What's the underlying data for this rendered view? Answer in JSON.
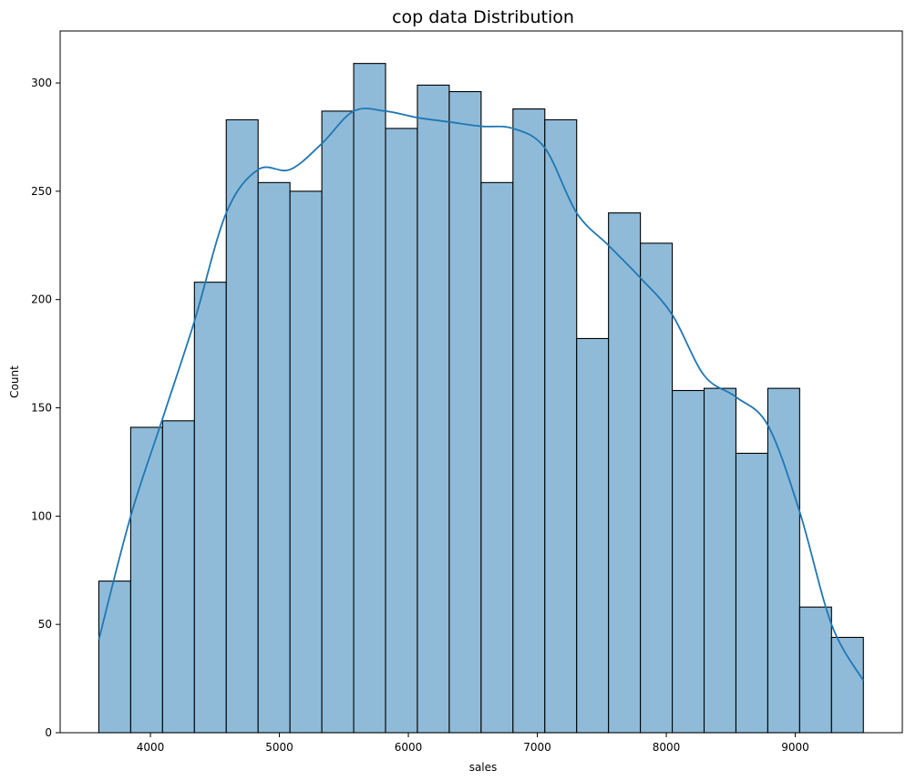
{
  "chart_data": {
    "type": "bar",
    "title": "cop data Distribution",
    "xlabel": "sales",
    "ylabel": "Count",
    "bin_edges": [
      3600,
      3847,
      4094,
      4341,
      4588,
      4835,
      5082,
      5329,
      5576,
      5823,
      6070,
      6317,
      6564,
      6811,
      7058,
      7305,
      7552,
      7799,
      8046,
      8293,
      8540,
      8787,
      9034,
      9281,
      9528
    ],
    "counts": [
      70,
      141,
      144,
      208,
      283,
      254,
      250,
      287,
      309,
      279,
      299,
      296,
      254,
      288,
      283,
      182,
      240,
      226,
      158,
      159,
      129,
      159,
      58,
      44
    ],
    "kde": {
      "x": [
        3600,
        3847,
        4094,
        4341,
        4588,
        4835,
        5082,
        5329,
        5576,
        5823,
        6070,
        6317,
        6564,
        6811,
        7058,
        7305,
        7552,
        7799,
        8046,
        8293,
        8540,
        8787,
        9034,
        9281,
        9528
      ],
      "y": [
        43,
        100,
        145,
        190,
        240,
        260,
        260,
        272,
        287,
        287,
        284,
        282,
        280,
        279,
        270,
        240,
        225,
        210,
        193,
        165,
        155,
        142,
        102,
        50,
        24
      ]
    },
    "xlim": [
      3300,
      9830
    ],
    "ylim": [
      0,
      324
    ],
    "xticks": [
      4000,
      5000,
      6000,
      7000,
      8000,
      9000
    ],
    "yticks": [
      0,
      50,
      100,
      150,
      200,
      250,
      300
    ],
    "colors": {
      "bar_fill": "#8fbbd9",
      "bar_edge": "#000000",
      "kde_line": "#1f77b4"
    },
    "grid": false,
    "legend": "none"
  }
}
